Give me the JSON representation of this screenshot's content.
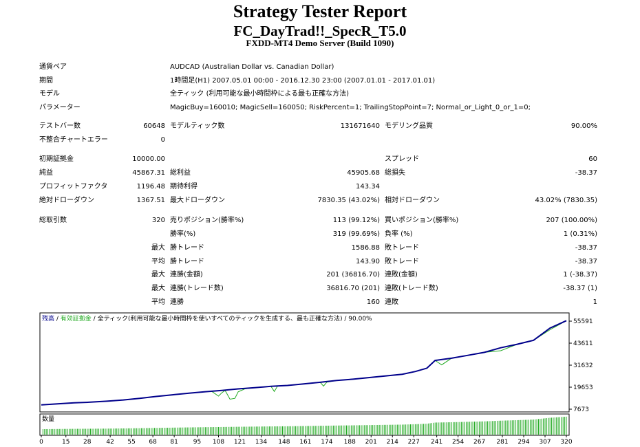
{
  "header": {
    "title": "Strategy Tester Report",
    "subtitle": "FC_DayTrad!!_SpecR_T5.0",
    "server": "FXDD-MT4 Demo Server (Build 1090)"
  },
  "info": {
    "symbol_label": "通貨ペア",
    "symbol_value": "AUDCAD (Australian Dollar vs. Canadian Dollar)",
    "period_label": "期間",
    "period_value": "1時間足(H1) 2007.05.01 00:00 - 2016.12.30 23:00 (2007.01.01 - 2017.01.01)",
    "model_label": "モデル",
    "model_value": "全ティック (利用可能な最小時間枠による最も正確な方法)",
    "params_label": "パラメーター",
    "params_value": "MagicBuy=160010; MagicSell=160050; RiskPercent=1; TrailingStopPoint=7; Normal_or_Light_0_or_1=0;"
  },
  "stats": {
    "bars_label": "テストバー数",
    "bars_value": "60648",
    "ticks_label": "モデルティック数",
    "ticks_value": "131671640",
    "quality_label": "モデリング品質",
    "quality_value": "90.00%",
    "mismatch_label": "不整合チャートエラー",
    "mismatch_value": "0",
    "deposit_label": "初期証拠金",
    "deposit_value": "10000.00",
    "spread_label": "スプレッド",
    "spread_value": "60",
    "net_label": "純益",
    "net_value": "45867.31",
    "gross_profit_label": "総利益",
    "gross_profit_value": "45905.68",
    "gross_loss_label": "総損失",
    "gross_loss_value": "-38.37",
    "pf_label": "プロフィットファクタ",
    "pf_value": "1196.48",
    "payoff_label": "期待利得",
    "payoff_value": "143.34",
    "abs_dd_label": "絶対ドローダウン",
    "abs_dd_value": "1367.51",
    "max_dd_label": "最大ドローダウン",
    "max_dd_value": "7830.35 (43.02%)",
    "rel_dd_label": "相対ドローダウン",
    "rel_dd_value": "43.02% (7830.35)",
    "total_trades_label": "総取引数",
    "total_trades_value": "320",
    "short_label": "売りポジション(勝率%)",
    "short_value": "113 (99.12%)",
    "long_label": "買いポジション(勝率%)",
    "long_value": "207 (100.00%)",
    "win_label": "勝率(%)",
    "win_value": "319 (99.69%)",
    "loss_label": "負率 (%)",
    "loss_value": "1 (0.31%)",
    "largest_label": "最大",
    "largest_win_label": "勝トレード",
    "largest_win_value": "1586.88",
    "largest_loss_label": "敗トレード",
    "largest_loss_value": "-38.37",
    "average_label": "平均",
    "avg_win_label": "勝トレード",
    "avg_win_value": "143.90",
    "avg_loss_label": "敗トレード",
    "avg_loss_value": "-38.37",
    "max1_label": "最大",
    "cons_wins_money_label": "連勝(金額)",
    "cons_wins_money_value": "201 (36816.70)",
    "cons_loss_money_label": "連敗(金額)",
    "cons_loss_money_value": "1 (-38.37)",
    "max2_label": "最大",
    "cons_profit_label": "連勝(トレード数)",
    "cons_profit_value": "36816.70 (201)",
    "cons_lossc_label": "連敗(トレード数)",
    "cons_lossc_value": "-38.37 (1)",
    "avg2_label": "平均",
    "avg_cons_wins_label": "連勝",
    "avg_cons_wins_value": "160",
    "avg_cons_loss_label": "連敗",
    "avg_cons_loss_value": "1"
  },
  "chart_legend": {
    "balance": "残高",
    "sep1": " / ",
    "equity": "有効証拠金",
    "sep2": " / ",
    "model": "全ティック(利用可能な最小時間枠を使いすべてのティックを生成する、最も正確な方法)",
    "sep3": " / ",
    "quality": "90.00%",
    "volume_label": "数量"
  },
  "colors": {
    "balance": "#00008b",
    "equity": "#22aa22",
    "volume": "#22aa22",
    "frame": "#000000"
  },
  "chart_data": {
    "type": "line",
    "ylim": [
      7673,
      55591
    ],
    "yticks": [
      "55591",
      "43611",
      "31632",
      "19653",
      "7673"
    ],
    "xlim": [
      0,
      320
    ],
    "xticks": [
      "0",
      "15",
      "28",
      "42",
      "55",
      "68",
      "81",
      "95",
      "108",
      "121",
      "134",
      "148",
      "161",
      "174",
      "188",
      "201",
      "214",
      "227",
      "241",
      "254",
      "267",
      "281",
      "294",
      "307",
      "320"
    ],
    "series": [
      {
        "name": "残高",
        "x": [
          0,
          10,
          20,
          30,
          40,
          50,
          60,
          70,
          80,
          90,
          100,
          110,
          120,
          130,
          140,
          150,
          160,
          170,
          180,
          190,
          200,
          210,
          220,
          228,
          235,
          240,
          250,
          260,
          270,
          280,
          290,
          300,
          310,
          320
        ],
        "y": [
          10000,
          10600,
          11100,
          11500,
          12000,
          12700,
          13600,
          14600,
          15500,
          16400,
          17200,
          17900,
          18700,
          19400,
          20100,
          20600,
          21400,
          22300,
          23300,
          24000,
          24900,
          25800,
          26700,
          28200,
          30000,
          34200,
          35400,
          37000,
          38600,
          41100,
          43000,
          45200,
          51800,
          55867
        ]
      },
      {
        "name": "有効証拠金",
        "x": [
          0,
          10,
          20,
          30,
          40,
          50,
          60,
          70,
          80,
          90,
          100,
          104,
          108,
          110,
          112,
          115,
          118,
          120,
          124,
          130,
          140,
          142,
          144,
          150,
          160,
          170,
          172,
          174,
          180,
          190,
          200,
          210,
          220,
          228,
          235,
          240,
          244,
          250,
          260,
          270,
          280,
          290,
          300,
          310,
          320
        ],
        "y": [
          10000,
          10600,
          11100,
          11500,
          12000,
          12700,
          13600,
          14600,
          15500,
          16400,
          17200,
          17300,
          14800,
          16600,
          17900,
          13100,
          13600,
          17100,
          18700,
          19400,
          20100,
          17300,
          20300,
          20600,
          21400,
          22300,
          20200,
          22400,
          23300,
          24000,
          24900,
          25800,
          26700,
          28200,
          30000,
          34200,
          31800,
          35400,
          37000,
          38600,
          39500,
          43000,
          45200,
          50900,
          55867
        ]
      }
    ]
  }
}
